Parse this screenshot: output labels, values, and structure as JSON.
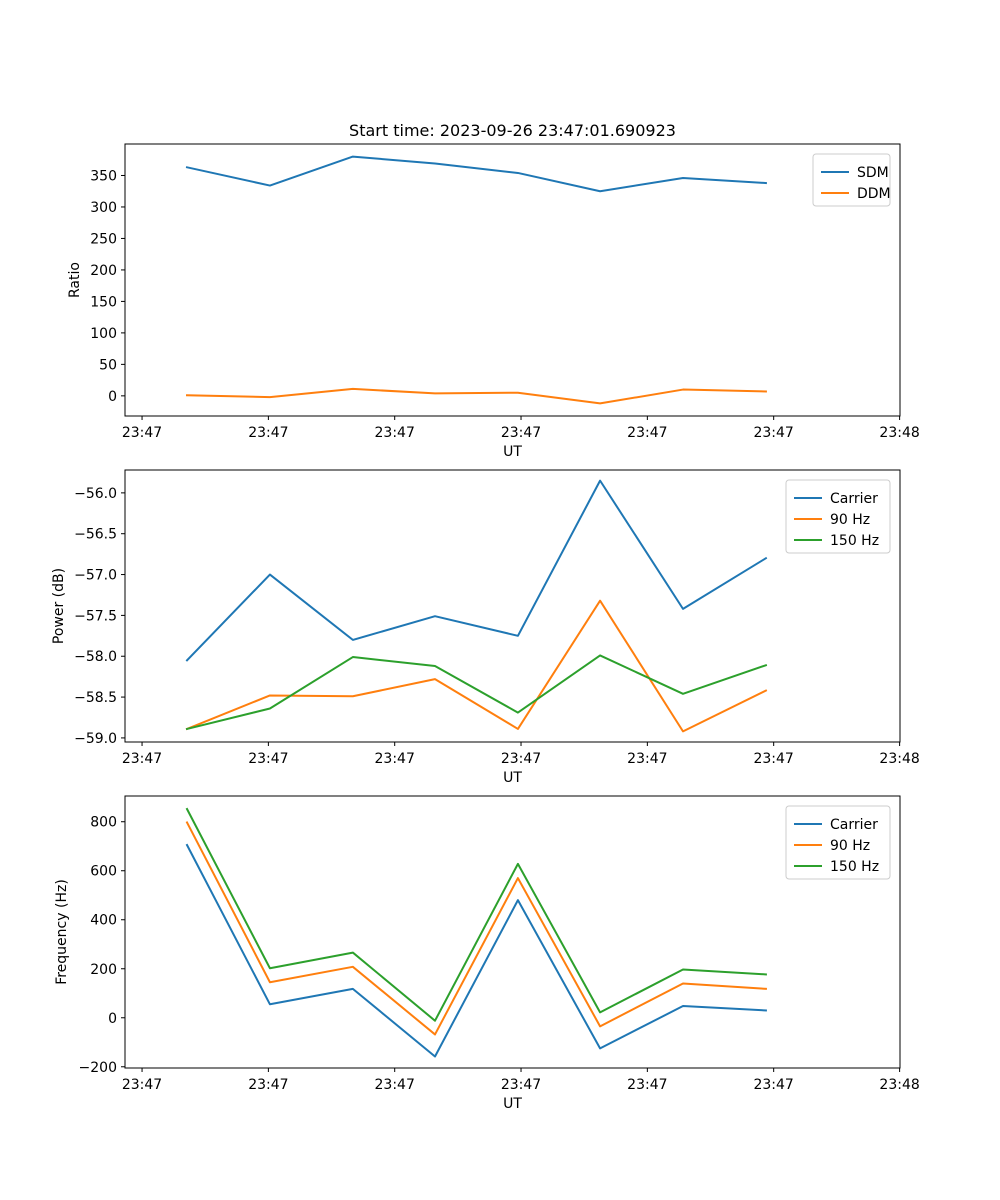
{
  "chart_data": [
    {
      "type": "line",
      "title": "Start time: 2023-09-26 23:47:01.690923",
      "xlabel": "UT",
      "ylabel": "Ratio",
      "x_tick_labels": [
        "23:47",
        "23:47",
        "23:47",
        "23:47",
        "23:47",
        "23:47",
        "23:48"
      ],
      "xlim": [
        0,
        1
      ],
      "x": [
        0.08,
        0.187,
        0.294,
        0.4,
        0.507,
        0.613,
        0.72,
        0.827
      ],
      "ylim": [
        -32,
        400
      ],
      "y_ticks": [
        0,
        50,
        100,
        150,
        200,
        250,
        300,
        350
      ],
      "y_tick_labels": [
        "0",
        "50",
        "100",
        "150",
        "200",
        "250",
        "300",
        "350"
      ],
      "legend_position": "upper right",
      "series": [
        {
          "name": "SDM",
          "color": "#1f77b4",
          "values": [
            363,
            334,
            380,
            369,
            354,
            325,
            346,
            338
          ]
        },
        {
          "name": "DDM",
          "color": "#ff7f0e",
          "values": [
            1,
            -2,
            11,
            4,
            5,
            -12,
            10,
            7
          ]
        }
      ]
    },
    {
      "type": "line",
      "title": "",
      "xlabel": "UT",
      "ylabel": "Power (dB)",
      "x_tick_labels": [
        "23:47",
        "23:47",
        "23:47",
        "23:47",
        "23:47",
        "23:47",
        "23:48"
      ],
      "xlim": [
        0,
        1
      ],
      "x": [
        0.08,
        0.187,
        0.294,
        0.4,
        0.507,
        0.613,
        0.72,
        0.827
      ],
      "ylim": [
        -59.05,
        -55.72
      ],
      "y_ticks": [
        -59.0,
        -58.5,
        -58.0,
        -57.5,
        -57.0,
        -56.5,
        -56.0
      ],
      "y_tick_labels": [
        "−59.0",
        "−58.5",
        "−58.0",
        "−57.5",
        "−57.0",
        "−56.5",
        "−56.0"
      ],
      "legend_position": "upper right",
      "series": [
        {
          "name": "Carrier",
          "color": "#1f77b4",
          "values": [
            -58.05,
            -57.0,
            -57.8,
            -57.51,
            -57.75,
            -55.85,
            -57.42,
            -56.8
          ]
        },
        {
          "name": "90 Hz",
          "color": "#ff7f0e",
          "values": [
            -58.89,
            -58.48,
            -58.49,
            -58.28,
            -58.89,
            -57.32,
            -58.92,
            -58.42
          ]
        },
        {
          "name": "150 Hz",
          "color": "#2ca02c",
          "values": [
            -58.89,
            -58.64,
            -58.01,
            -58.12,
            -58.69,
            -57.99,
            -58.46,
            -58.11
          ]
        }
      ]
    },
    {
      "type": "line",
      "title": "",
      "xlabel": "UT",
      "ylabel": "Frequency (Hz)",
      "x_tick_labels": [
        "23:47",
        "23:47",
        "23:47",
        "23:47",
        "23:47",
        "23:47",
        "23:48"
      ],
      "xlim": [
        0,
        1
      ],
      "x": [
        0.08,
        0.187,
        0.294,
        0.4,
        0.507,
        0.613,
        0.72,
        0.827
      ],
      "ylim": [
        -205,
        905
      ],
      "y_ticks": [
        -200,
        0,
        200,
        400,
        600,
        800
      ],
      "y_tick_labels": [
        "−200",
        "0",
        "200",
        "400",
        "600",
        "800"
      ],
      "legend_position": "upper right",
      "series": [
        {
          "name": "Carrier",
          "color": "#1f77b4",
          "values": [
            705,
            55,
            118,
            -158,
            480,
            -125,
            48,
            30
          ]
        },
        {
          "name": "90 Hz",
          "color": "#ff7f0e",
          "values": [
            797,
            145,
            208,
            -68,
            570,
            -35,
            140,
            118
          ]
        },
        {
          "name": "150 Hz",
          "color": "#2ca02c",
          "values": [
            852,
            202,
            266,
            -12,
            628,
            22,
            197,
            177
          ]
        }
      ]
    }
  ]
}
